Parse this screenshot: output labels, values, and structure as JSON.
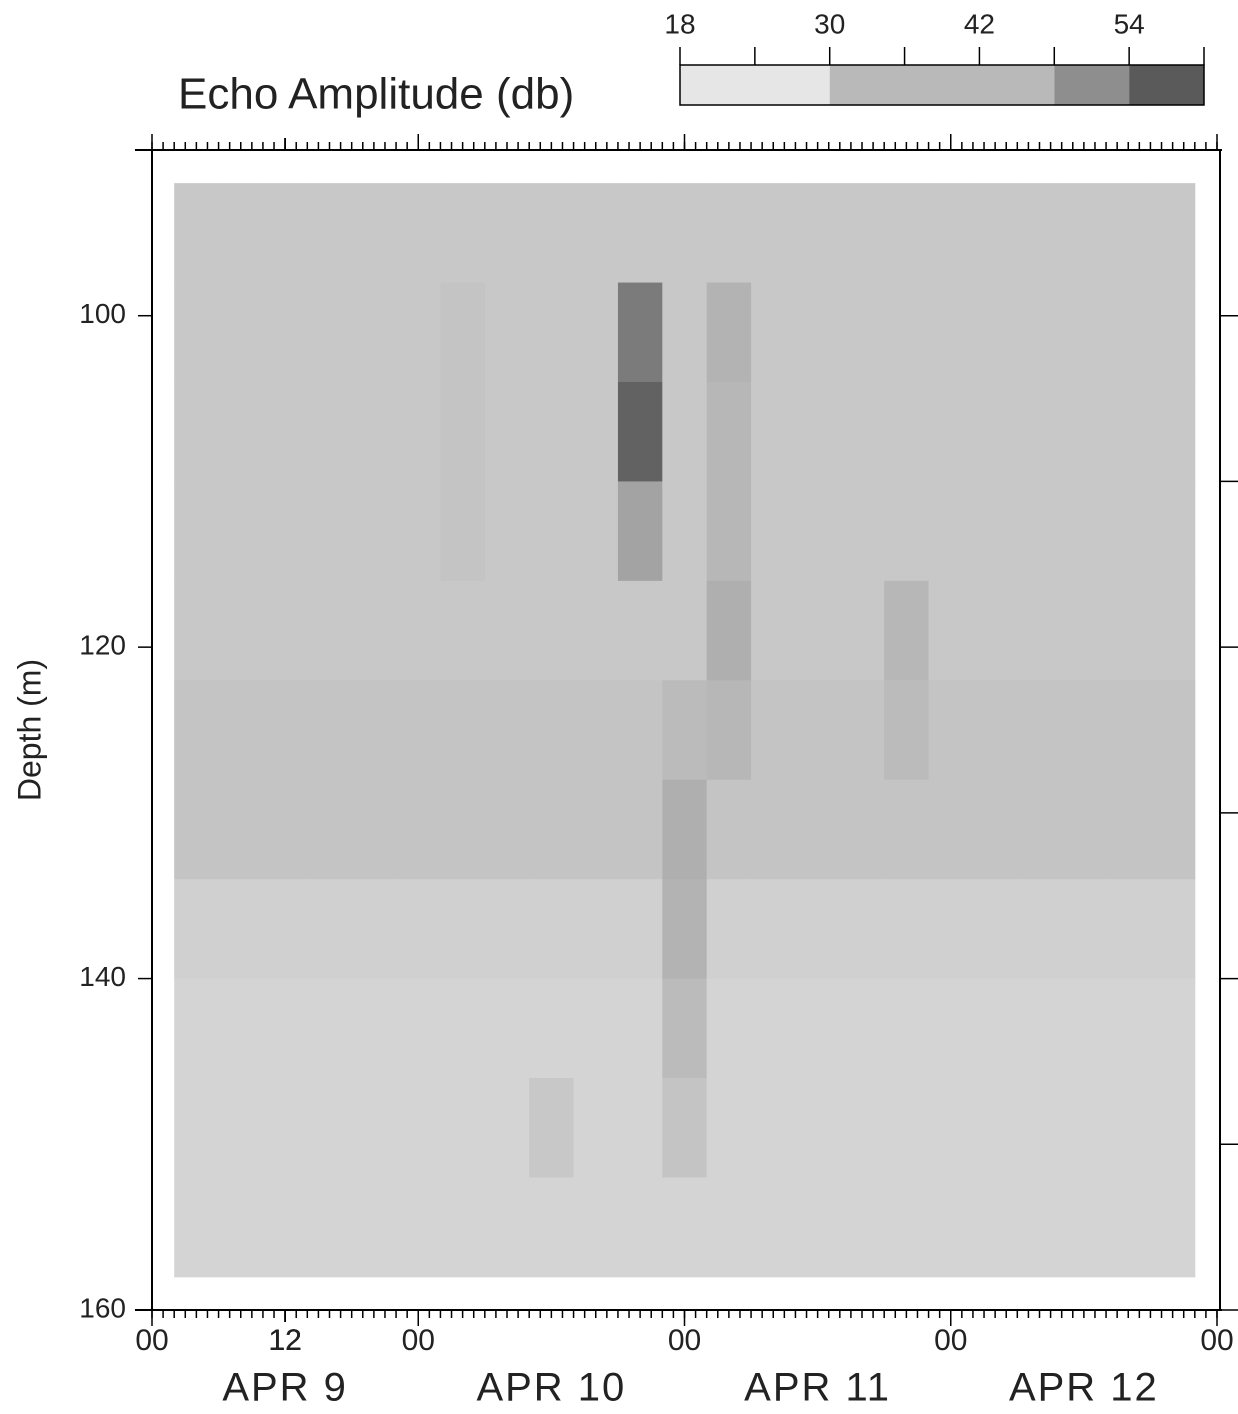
{
  "chart_data": {
    "type": "heatmap",
    "title": "Echo Amplitude (db)",
    "y_label": "Depth (m)",
    "xlim": [
      0,
      96
    ],
    "ylim": [
      160,
      90
    ],
    "xticks": [
      {
        "value": 0,
        "label": "00"
      },
      12,
      {
        "value": 24,
        "label": "00"
      },
      12,
      {
        "value": 48,
        "label": "00"
      },
      12,
      {
        "value": 72,
        "label": "00"
      },
      12,
      {
        "value": 96,
        "label": "00"
      }
    ],
    "xminor_step": 1,
    "date_labels": [
      {
        "value": 12,
        "label": "APR 9"
      },
      {
        "value": 36,
        "label": "APR 10"
      },
      {
        "value": 60,
        "label": "APR 11"
      },
      {
        "value": 84,
        "label": "APR 12"
      }
    ],
    "yticks": [
      100,
      120,
      140,
      160
    ],
    "yminor_ticks": [
      110,
      130,
      150
    ],
    "x_edges": [
      2,
      6,
      10,
      14,
      18,
      22,
      26,
      30,
      34,
      38,
      42,
      46,
      50,
      54,
      58,
      62,
      66,
      70,
      74,
      78,
      82,
      86,
      90,
      94
    ],
    "y_edges": [
      92,
      98,
      104,
      110,
      116,
      122,
      128,
      134,
      140,
      146,
      152,
      158
    ],
    "z": [
      [
        27,
        27,
        27,
        27,
        27,
        27,
        27,
        27,
        27,
        27,
        27,
        27,
        27,
        27,
        27,
        27,
        27,
        27,
        27,
        27,
        27,
        27,
        27
      ],
      [
        27,
        27,
        27,
        27,
        27,
        27,
        28,
        27,
        27,
        27,
        46,
        27,
        32,
        27,
        27,
        27,
        27,
        27,
        27,
        27,
        27,
        27,
        27
      ],
      [
        27,
        27,
        27,
        27,
        27,
        27,
        28,
        27,
        27,
        27,
        52,
        27,
        31,
        27,
        27,
        27,
        27,
        27,
        27,
        27,
        27,
        27,
        27
      ],
      [
        27,
        27,
        27,
        27,
        27,
        27,
        28,
        27,
        27,
        27,
        36,
        27,
        31,
        27,
        27,
        27,
        27,
        27,
        27,
        27,
        27,
        27,
        27
      ],
      [
        27,
        27,
        27,
        27,
        27,
        27,
        27,
        27,
        27,
        27,
        27,
        27,
        33,
        27,
        27,
        27,
        31,
        27,
        27,
        27,
        27,
        27,
        27
      ],
      [
        28,
        28,
        28,
        28,
        28,
        28,
        28,
        28,
        28,
        28,
        28,
        30,
        31,
        28,
        28,
        28,
        30,
        28,
        28,
        28,
        28,
        28,
        28
      ],
      [
        28,
        28,
        28,
        28,
        28,
        28,
        28,
        28,
        28,
        28,
        28,
        33,
        28,
        28,
        28,
        28,
        28,
        28,
        28,
        28,
        28,
        28,
        28
      ],
      [
        25,
        25,
        25,
        25,
        25,
        25,
        25,
        25,
        25,
        25,
        25,
        32,
        25,
        25,
        25,
        25,
        25,
        25,
        25,
        25,
        25,
        25,
        25
      ],
      [
        24,
        24,
        24,
        24,
        24,
        24,
        24,
        24,
        24,
        24,
        24,
        30,
        24,
        24,
        24,
        24,
        24,
        24,
        24,
        24,
        24,
        24,
        24
      ],
      [
        24,
        24,
        24,
        24,
        24,
        24,
        24,
        24,
        27,
        24,
        24,
        28,
        24,
        24,
        24,
        24,
        24,
        24,
        24,
        24,
        24,
        24,
        24
      ],
      [
        24,
        24,
        24,
        24,
        24,
        24,
        24,
        24,
        24,
        24,
        24,
        24,
        24,
        24,
        24,
        24,
        24,
        24,
        24,
        24,
        24,
        24,
        24
      ]
    ],
    "colorbar": {
      "levels": [
        18,
        30,
        48,
        54,
        60
      ],
      "colors": [
        "#e6e6e6",
        "#b9b9b9",
        "#8e8e8e",
        "#5a5a5a"
      ],
      "ticks": [
        18,
        30,
        42,
        54
      ],
      "minor_ticks": [
        24,
        36,
        48,
        60
      ]
    }
  }
}
